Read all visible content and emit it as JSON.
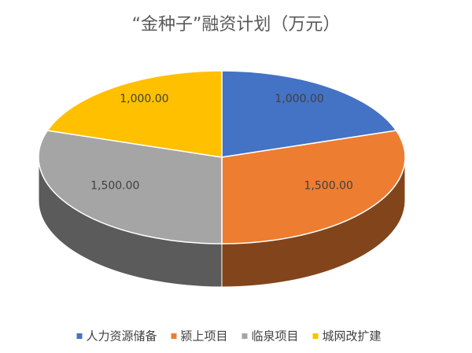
{
  "chart_data": {
    "type": "pie",
    "title": "“金种子”融资计划（万元）",
    "categories": [
      "人力资源储备",
      "颍上项目",
      "临泉项目",
      "城网改扩建"
    ],
    "values": [
      1000,
      1500,
      1500,
      1000
    ],
    "value_labels": [
      "1,000.00",
      "1,500.00",
      "1,500.00",
      "1,000.00"
    ],
    "colors": [
      "#4472c4",
      "#ed7d31",
      "#a5a5a5",
      "#ffc000"
    ],
    "legend": "bottom"
  }
}
